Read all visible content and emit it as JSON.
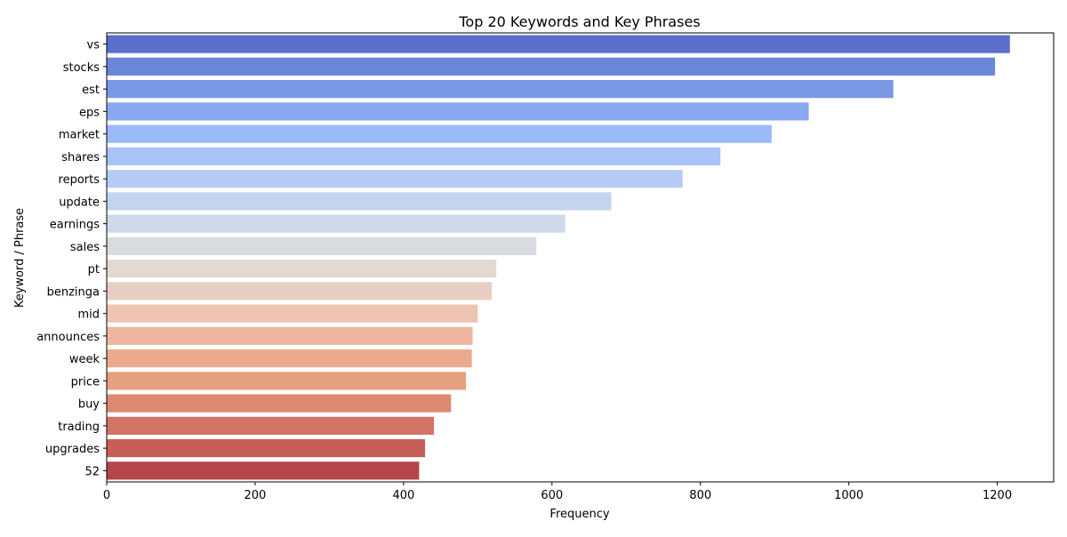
{
  "chart_data": {
    "type": "bar",
    "orientation": "horizontal",
    "title": "Top 20 Keywords and Key Phrases",
    "xlabel": "Frequency",
    "ylabel": "Keyword / Phrase",
    "xlim": [
      0,
      1276
    ],
    "xticks": [
      0,
      200,
      400,
      600,
      800,
      1000,
      1200
    ],
    "xtick_labels": [
      "0",
      "200",
      "400",
      "600",
      "800",
      "1000",
      "1200"
    ],
    "grid": false,
    "legend": "none",
    "palette": "coolwarm",
    "categories": [
      "vs",
      "stocks",
      "est",
      "eps",
      "market",
      "shares",
      "reports",
      "update",
      "earnings",
      "sales",
      "pt",
      "benzinga",
      "mid",
      "announces",
      "week",
      "price",
      "buy",
      "trading",
      "upgrades",
      "52"
    ],
    "values": [
      1217,
      1197,
      1060,
      946,
      896,
      827,
      776,
      680,
      618,
      579,
      525,
      519,
      500,
      493,
      492,
      484,
      464,
      441,
      429,
      421
    ],
    "colors": [
      "#5a6fc9",
      "#6a86d8",
      "#7b98e6",
      "#8aa9f2",
      "#9abaf8",
      "#a8c3f8",
      "#b6cbf4",
      "#c4d4ee",
      "#cfd9ea",
      "#dadbe0",
      "#e3d9d3",
      "#e8cfc4",
      "#edc5b2",
      "#eeb69e",
      "#ebaa8c",
      "#e69f7f",
      "#dd8971",
      "#d27565",
      "#c65f57",
      "#b5454a"
    ]
  }
}
